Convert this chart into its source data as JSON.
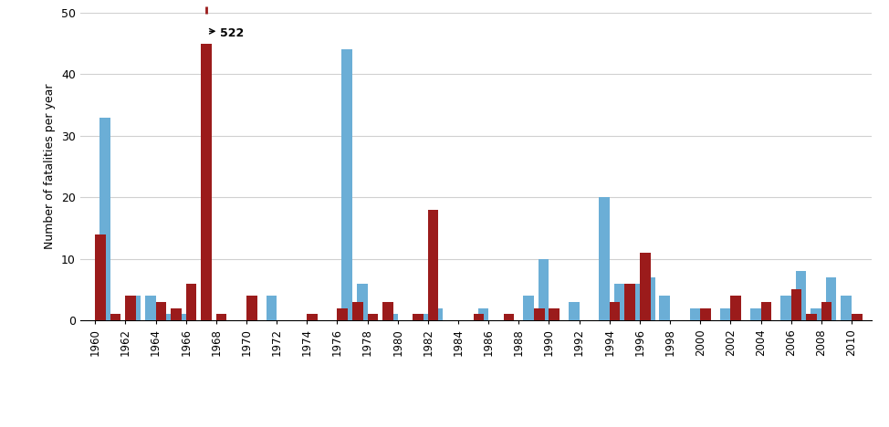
{
  "years": [
    1960,
    1961,
    1962,
    1963,
    1964,
    1965,
    1966,
    1967,
    1968,
    1969,
    1970,
    1971,
    1972,
    1973,
    1974,
    1975,
    1976,
    1977,
    1978,
    1979,
    1980,
    1981,
    1982,
    1983,
    1984,
    1985,
    1986,
    1987,
    1988,
    1989,
    1990,
    1991,
    1992,
    1993,
    1994,
    1995,
    1996,
    1997,
    1998,
    1999,
    2000,
    2001,
    2002,
    2003,
    2004,
    2005,
    2006,
    2007,
    2008,
    2009,
    2010
  ],
  "greece": [
    0,
    33,
    0,
    4,
    4,
    1,
    1,
    0,
    0,
    0,
    0,
    0,
    4,
    0,
    0,
    0,
    0,
    44,
    6,
    0,
    1,
    0,
    1,
    2,
    0,
    0,
    2,
    0,
    0,
    4,
    10,
    0,
    3,
    0,
    20,
    6,
    6,
    7,
    4,
    0,
    2,
    0,
    2,
    0,
    2,
    0,
    4,
    8,
    2,
    7,
    4
  ],
  "portugal": [
    14,
    1,
    4,
    0,
    3,
    2,
    6,
    45,
    1,
    0,
    4,
    0,
    0,
    0,
    1,
    0,
    2,
    3,
    1,
    3,
    0,
    1,
    18,
    0,
    0,
    1,
    0,
    1,
    0,
    2,
    2,
    0,
    0,
    0,
    3,
    6,
    11,
    0,
    0,
    0,
    2,
    0,
    4,
    0,
    3,
    0,
    5,
    1,
    3,
    0,
    1
  ],
  "portugal_outlier_year": 1967,
  "portugal_outlier_value": 522,
  "portugal_outlier_display": 45,
  "greece_color": "#6baed6",
  "portugal_color": "#9b1b1b",
  "ylabel": "Number of fatalities per year",
  "ylim": [
    0,
    50
  ],
  "yticks": [
    0,
    10,
    20,
    30,
    40,
    50
  ],
  "xtick_years": [
    1960,
    1962,
    1964,
    1966,
    1968,
    1970,
    1972,
    1974,
    1976,
    1978,
    1980,
    1982,
    1984,
    1986,
    1988,
    1990,
    1992,
    1994,
    1996,
    1998,
    2000,
    2002,
    2004,
    2006,
    2008,
    2010
  ],
  "bar_width": 0.7,
  "annotation_text": "522",
  "bg_color": "#ffffff",
  "grid_color": "#d0d0d0",
  "figsize": [
    9.74,
    4.68
  ],
  "dpi": 100
}
